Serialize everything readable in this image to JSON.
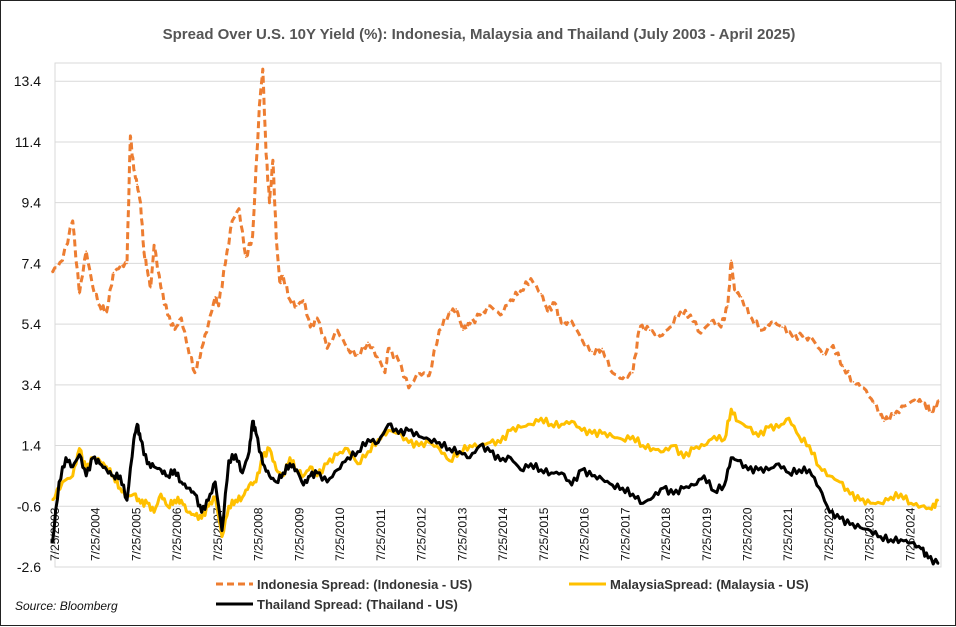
{
  "chart_data": {
    "type": "line",
    "title": "Spread Over U.S. 10Y Yield (%): Indonesia, Malaysia and Thailand (July 2003 - April 2025)",
    "xlabel": "",
    "ylabel": "",
    "ylim": [
      -2.6,
      14.0
    ],
    "xlim": [
      "2003-07-25",
      "2025-04-25"
    ],
    "y_ticks": [
      "13.4",
      "11.4",
      "9.4",
      "7.4",
      "5.4",
      "3.4",
      "1.4",
      "-0.6",
      "-2.6"
    ],
    "y_tick_values": [
      13.4,
      11.4,
      9.4,
      7.4,
      5.4,
      3.4,
      1.4,
      -0.6,
      -2.6
    ],
    "x_ticks": [
      "7/25/2003",
      "7/25/2004",
      "7/25/2005",
      "7/25/2006",
      "7/25/2007",
      "7/25/2008",
      "7/25/2009",
      "7/25/2010",
      "7/25/2011",
      "7/25/2012",
      "7/25/2013",
      "7/25/2014",
      "7/25/2015",
      "7/25/2016",
      "7/25/2017",
      "7/25/2018",
      "7/25/2019",
      "7/25/2020",
      "7/25/2021",
      "7/25/2022",
      "7/25/2023",
      "7/25/2024"
    ],
    "grid": "horizontal",
    "legend_position": "bottom",
    "source": "Source: Bloomberg",
    "series": [
      {
        "name": "Indonesia Spread: (Indonesia - US)",
        "color": "#ED7D31",
        "style": "dashed",
        "x": [
          "2003-07",
          "2003-10",
          "2004-01",
          "2004-03",
          "2004-05",
          "2004-07",
          "2004-09",
          "2004-11",
          "2005-01",
          "2005-03",
          "2005-05",
          "2005-06",
          "2005-07",
          "2005-08",
          "2005-09",
          "2005-10",
          "2005-11",
          "2005-12",
          "2006-01",
          "2006-03",
          "2006-05",
          "2006-07",
          "2006-09",
          "2006-11",
          "2007-01",
          "2007-03",
          "2007-05",
          "2007-07",
          "2007-08",
          "2007-10",
          "2007-12",
          "2008-02",
          "2008-04",
          "2008-06",
          "2008-08",
          "2008-09",
          "2008-10",
          "2008-11",
          "2008-12",
          "2009-01",
          "2009-02",
          "2009-03",
          "2009-05",
          "2009-07",
          "2009-09",
          "2009-11",
          "2010-01",
          "2010-04",
          "2010-07",
          "2010-10",
          "2011-01",
          "2011-04",
          "2011-07",
          "2011-09",
          "2011-10",
          "2012-01",
          "2012-04",
          "2012-07",
          "2012-10",
          "2013-01",
          "2013-04",
          "2013-06",
          "2013-08",
          "2013-10",
          "2014-01",
          "2014-04",
          "2014-07",
          "2014-10",
          "2015-01",
          "2015-04",
          "2015-07",
          "2015-09",
          "2015-11",
          "2016-01",
          "2016-04",
          "2016-07",
          "2016-10",
          "2017-01",
          "2017-04",
          "2017-07",
          "2017-10",
          "2017-12",
          "2018-03",
          "2018-06",
          "2018-09",
          "2018-12",
          "2019-03",
          "2019-06",
          "2019-09",
          "2019-12",
          "2020-02",
          "2020-03",
          "2020-04",
          "2020-06",
          "2020-09",
          "2020-12",
          "2021-03",
          "2021-06",
          "2021-09",
          "2021-12",
          "2022-03",
          "2022-06",
          "2022-09",
          "2022-12",
          "2023-03",
          "2023-06",
          "2023-09",
          "2023-12",
          "2024-03",
          "2024-06",
          "2024-09",
          "2024-12",
          "2025-02",
          "2025-04"
        ],
        "values": [
          7.1,
          7.5,
          8.8,
          6.4,
          7.8,
          6.6,
          6.0,
          5.8,
          7.1,
          7.3,
          7.4,
          11.6,
          10.5,
          10.0,
          9.4,
          7.8,
          7.2,
          6.6,
          8.0,
          6.6,
          5.7,
          5.2,
          5.6,
          4.6,
          3.8,
          4.6,
          5.4,
          6.3,
          6.0,
          7.4,
          8.8,
          9.2,
          7.6,
          8.3,
          12.6,
          13.8,
          11.0,
          9.4,
          10.8,
          8.2,
          6.8,
          7.0,
          6.2,
          6.0,
          6.2,
          5.3,
          5.6,
          4.6,
          5.2,
          4.6,
          4.4,
          4.8,
          4.3,
          3.8,
          4.6,
          4.2,
          3.3,
          3.8,
          3.7,
          5.2,
          5.8,
          5.9,
          5.2,
          5.4,
          5.7,
          6.0,
          5.7,
          6.2,
          6.5,
          6.9,
          6.4,
          5.8,
          6.1,
          5.4,
          5.5,
          4.9,
          4.5,
          4.6,
          3.8,
          3.6,
          3.8,
          5.3,
          5.2,
          5.0,
          5.3,
          5.8,
          5.7,
          5.1,
          5.5,
          5.3,
          6.0,
          7.5,
          6.5,
          6.3,
          5.6,
          5.2,
          5.5,
          5.3,
          5.0,
          5.0,
          4.9,
          4.4,
          4.7,
          4.0,
          3.5,
          3.3,
          2.8,
          2.2,
          2.4,
          2.7,
          2.9,
          2.8,
          2.5,
          2.9
        ]
      },
      {
        "name": "MalaysiaSpread: (Malaysia - US)",
        "color": "#FFC000",
        "style": "solid",
        "x": [
          "2003-07",
          "2003-10",
          "2004-01",
          "2004-03",
          "2004-05",
          "2004-07",
          "2004-09",
          "2004-11",
          "2005-01",
          "2005-03",
          "2005-05",
          "2005-07",
          "2005-09",
          "2005-11",
          "2006-01",
          "2006-03",
          "2006-05",
          "2006-07",
          "2006-09",
          "2006-11",
          "2007-01",
          "2007-03",
          "2007-05",
          "2007-07",
          "2007-09",
          "2007-11",
          "2008-01",
          "2008-03",
          "2008-05",
          "2008-07",
          "2008-09",
          "2008-11",
          "2009-01",
          "2009-03",
          "2009-05",
          "2009-07",
          "2009-09",
          "2009-11",
          "2010-01",
          "2010-04",
          "2010-07",
          "2010-10",
          "2011-01",
          "2011-04",
          "2011-07",
          "2011-10",
          "2012-01",
          "2012-04",
          "2012-07",
          "2012-10",
          "2013-01",
          "2013-04",
          "2013-07",
          "2013-10",
          "2014-01",
          "2014-04",
          "2014-07",
          "2014-10",
          "2015-01",
          "2015-04",
          "2015-07",
          "2015-10",
          "2016-01",
          "2016-04",
          "2016-07",
          "2016-10",
          "2017-01",
          "2017-04",
          "2017-07",
          "2017-10",
          "2018-01",
          "2018-04",
          "2018-07",
          "2018-10",
          "2019-01",
          "2019-04",
          "2019-07",
          "2019-10",
          "2020-01",
          "2020-03",
          "2020-05",
          "2020-08",
          "2020-11",
          "2021-02",
          "2021-05",
          "2021-08",
          "2021-11",
          "2022-02",
          "2022-05",
          "2022-08",
          "2022-11",
          "2023-02",
          "2023-05",
          "2023-08",
          "2023-11",
          "2024-02",
          "2024-05",
          "2024-08",
          "2024-11",
          "2025-02",
          "2025-04"
        ],
        "values": [
          -0.4,
          0.2,
          0.4,
          1.3,
          0.6,
          1.0,
          0.9,
          0.7,
          0.4,
          0.0,
          -0.3,
          -0.2,
          -0.5,
          -0.5,
          -0.8,
          -0.2,
          -0.6,
          -0.4,
          -0.4,
          -0.8,
          -0.9,
          -1.0,
          -0.6,
          -0.3,
          -1.6,
          -0.6,
          -0.4,
          -0.3,
          0.1,
          0.2,
          1.0,
          1.3,
          0.6,
          0.4,
          1.0,
          0.6,
          0.4,
          0.7,
          0.4,
          0.8,
          1.1,
          1.3,
          0.8,
          1.2,
          1.6,
          1.9,
          1.8,
          1.5,
          1.4,
          1.5,
          1.3,
          0.9,
          1.2,
          1.4,
          1.4,
          1.5,
          1.5,
          1.9,
          2.0,
          2.1,
          2.3,
          2.1,
          2.1,
          2.2,
          1.9,
          1.8,
          1.8,
          1.7,
          1.6,
          1.7,
          1.4,
          1.3,
          1.2,
          1.4,
          1.0,
          1.3,
          1.4,
          1.7,
          1.6,
          2.6,
          2.2,
          2.0,
          1.7,
          2.0,
          2.0,
          2.3,
          1.7,
          1.4,
          0.7,
          0.4,
          0.2,
          -0.2,
          -0.4,
          -0.5,
          -0.5,
          -0.3,
          -0.2,
          -0.5,
          -0.6,
          -0.7,
          -0.4
        ]
      },
      {
        "name": "Thailand Spread: (Thailand - US)",
        "color": "#000000",
        "style": "solid",
        "x": [
          "2003-07",
          "2003-09",
          "2003-11",
          "2004-01",
          "2004-03",
          "2004-05",
          "2004-07",
          "2004-09",
          "2004-11",
          "2005-01",
          "2005-03",
          "2005-05",
          "2005-07",
          "2005-08",
          "2005-09",
          "2005-11",
          "2006-01",
          "2006-03",
          "2006-05",
          "2006-07",
          "2006-09",
          "2006-11",
          "2007-01",
          "2007-03",
          "2007-05",
          "2007-07",
          "2007-09",
          "2007-11",
          "2008-01",
          "2008-03",
          "2008-05",
          "2008-06",
          "2008-07",
          "2008-09",
          "2008-11",
          "2009-01",
          "2009-03",
          "2009-05",
          "2009-07",
          "2009-09",
          "2009-11",
          "2010-01",
          "2010-04",
          "2010-07",
          "2010-10",
          "2011-01",
          "2011-04",
          "2011-07",
          "2011-10",
          "2012-01",
          "2012-04",
          "2012-07",
          "2012-10",
          "2013-01",
          "2013-04",
          "2013-07",
          "2013-10",
          "2014-01",
          "2014-04",
          "2014-07",
          "2014-10",
          "2015-01",
          "2015-04",
          "2015-07",
          "2015-10",
          "2016-01",
          "2016-04",
          "2016-07",
          "2016-10",
          "2017-01",
          "2017-04",
          "2017-07",
          "2017-10",
          "2018-01",
          "2018-04",
          "2018-07",
          "2018-10",
          "2019-01",
          "2019-04",
          "2019-07",
          "2019-10",
          "2020-01",
          "2020-03",
          "2020-05",
          "2020-08",
          "2020-11",
          "2021-02",
          "2021-05",
          "2021-08",
          "2021-11",
          "2022-02",
          "2022-05",
          "2022-08",
          "2022-11",
          "2023-02",
          "2023-05",
          "2023-08",
          "2023-11",
          "2024-02",
          "2024-05",
          "2024-08",
          "2024-11",
          "2025-01",
          "2025-04"
        ],
        "values": [
          -1.8,
          0.2,
          1.0,
          0.7,
          1.1,
          0.4,
          1.0,
          0.8,
          0.6,
          0.4,
          0.4,
          -0.4,
          1.6,
          2.1,
          1.6,
          0.8,
          0.7,
          0.6,
          0.4,
          0.6,
          0.2,
          0.0,
          -0.2,
          -0.8,
          -0.4,
          0.2,
          -1.4,
          0.9,
          1.1,
          0.5,
          1.2,
          2.2,
          1.8,
          0.8,
          0.4,
          0.2,
          0.5,
          0.8,
          0.6,
          0.1,
          0.4,
          0.5,
          0.2,
          0.6,
          1.0,
          1.2,
          1.6,
          1.5,
          2.1,
          1.8,
          1.9,
          1.7,
          1.6,
          1.5,
          1.3,
          1.2,
          1.0,
          1.4,
          1.2,
          0.9,
          1.0,
          0.6,
          0.8,
          0.6,
          0.5,
          0.5,
          0.1,
          0.6,
          0.4,
          0.3,
          0.1,
          0.0,
          -0.2,
          -0.5,
          -0.3,
          0.0,
          -0.2,
          0.0,
          0.1,
          0.4,
          -0.1,
          0.1,
          1.0,
          0.9,
          0.6,
          0.6,
          0.6,
          0.8,
          0.5,
          0.6,
          0.6,
          0.0,
          -0.8,
          -1.0,
          -1.2,
          -1.3,
          -1.4,
          -1.6,
          -1.7,
          -1.7,
          -1.8,
          -2.0,
          -2.3,
          -2.5
        ]
      }
    ]
  }
}
